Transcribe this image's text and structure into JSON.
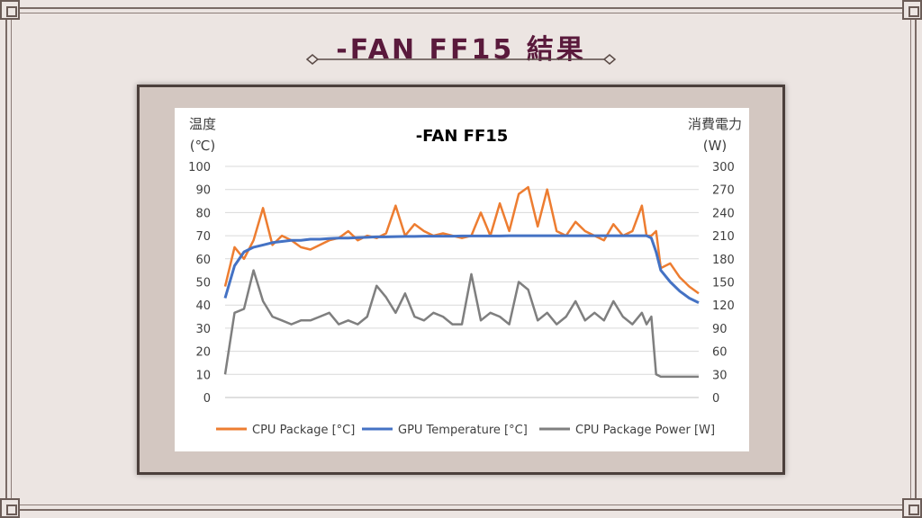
{
  "page": {
    "title": "-FAN FF15 結果"
  },
  "colors": {
    "cpu_package": "#ed7d31",
    "gpu_temperature": "#4472c4",
    "cpu_package_power": "#7f7f7f",
    "title": "#5a1a3c"
  },
  "chart_data": {
    "type": "line",
    "title": "-FAN FF15",
    "ylabel_left": "温度",
    "ylabel_left_unit": "(℃)",
    "ylabel_right": "消費電力",
    "ylabel_right_unit": "(W)",
    "ylim_left": [
      0,
      100
    ],
    "ylim_right": [
      0,
      300
    ],
    "yticks_left": [
      "0",
      "10",
      "20",
      "30",
      "40",
      "50",
      "60",
      "70",
      "80",
      "90",
      "100"
    ],
    "yticks_right": [
      "0",
      "30",
      "60",
      "90",
      "120",
      "150",
      "180",
      "210",
      "240",
      "270",
      "300"
    ],
    "grid": true,
    "legend_position": "bottom",
    "x": [
      0,
      2,
      4,
      6,
      8,
      10,
      12,
      14,
      16,
      18,
      20,
      22,
      24,
      26,
      28,
      30,
      32,
      34,
      36,
      38,
      40,
      42,
      44,
      46,
      48,
      50,
      52,
      54,
      56,
      58,
      60,
      62,
      64,
      66,
      68,
      70,
      72,
      74,
      76,
      78,
      80,
      82,
      84,
      86,
      88,
      89,
      90,
      91,
      92,
      94,
      96,
      98,
      100
    ],
    "series": [
      {
        "name": "CPU Package [°C]",
        "axis": "left",
        "values": [
          48,
          65,
          60,
          68,
          82,
          66,
          70,
          68,
          65,
          64,
          66,
          68,
          69,
          72,
          68,
          70,
          69,
          71,
          83,
          70,
          75,
          72,
          70,
          71,
          70,
          69,
          70,
          80,
          70,
          84,
          72,
          88,
          91,
          74,
          90,
          72,
          70,
          76,
          72,
          70,
          68,
          75,
          70,
          72,
          83,
          70,
          70,
          72,
          56,
          58,
          52,
          48,
          45
        ]
      },
      {
        "name": "GPU Temperature [°C]",
        "axis": "left",
        "values": [
          43,
          57,
          63,
          65,
          66,
          67,
          67.5,
          68,
          68,
          68.5,
          68.5,
          68.8,
          69,
          69,
          69.2,
          69.3,
          69.5,
          69.5,
          69.6,
          69.7,
          69.7,
          69.8,
          69.8,
          69.8,
          69.8,
          69.9,
          69.9,
          69.9,
          69.9,
          69.9,
          70,
          70,
          70,
          70,
          70,
          70,
          70,
          70,
          70,
          70,
          70,
          70,
          70,
          70,
          70,
          70,
          69,
          63,
          55,
          50,
          46,
          43,
          41
        ]
      },
      {
        "name": "CPU Package Power [W]",
        "axis": "right",
        "values": [
          30,
          110,
          115,
          165,
          125,
          105,
          100,
          95,
          100,
          100,
          105,
          110,
          95,
          100,
          95,
          105,
          145,
          130,
          110,
          135,
          105,
          100,
          110,
          105,
          95,
          95,
          160,
          100,
          110,
          105,
          95,
          150,
          140,
          100,
          110,
          95,
          105,
          125,
          100,
          110,
          100,
          125,
          105,
          95,
          110,
          95,
          105,
          30,
          27,
          27,
          27,
          27,
          27
        ]
      }
    ]
  }
}
